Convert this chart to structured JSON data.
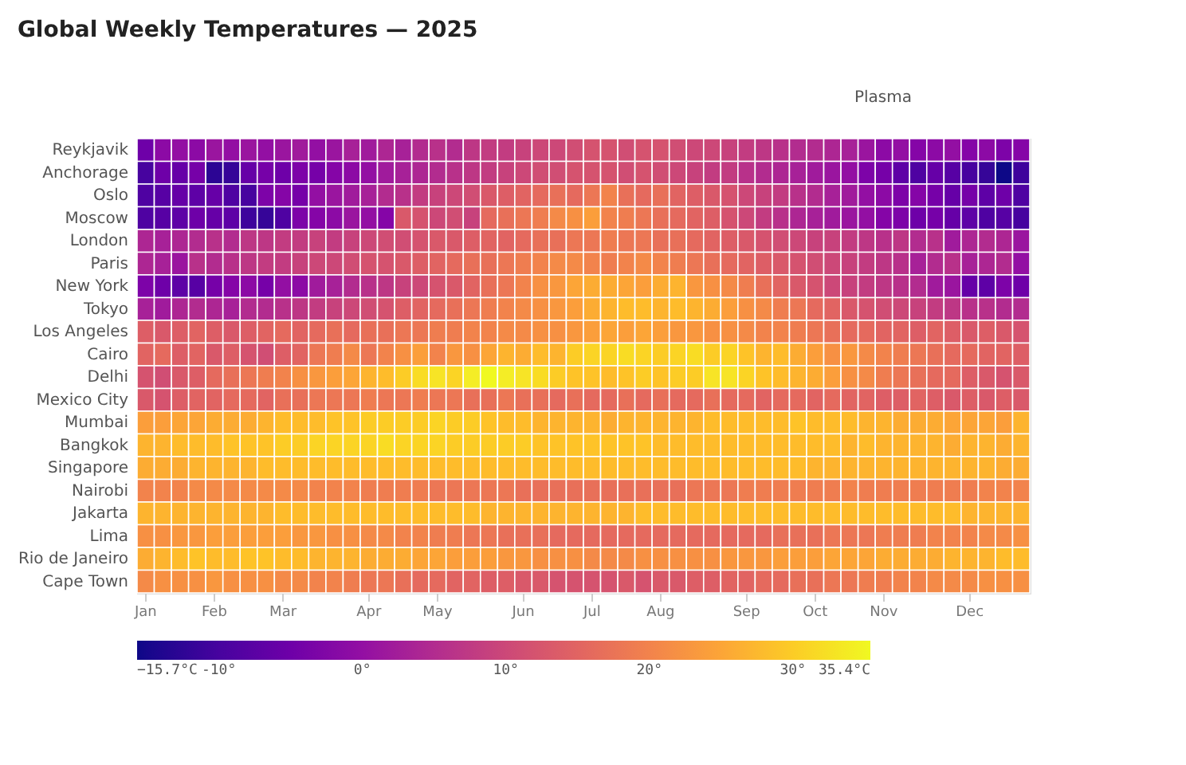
{
  "chart_data": {
    "type": "heatmap",
    "title": "Global Weekly Temperatures — 2025",
    "annotations": [
      "Plasma"
    ],
    "categories": [
      "Jan",
      null,
      null,
      null,
      "Feb",
      null,
      null,
      null,
      "Mar",
      null,
      null,
      null,
      null,
      "Apr",
      null,
      null,
      null,
      "May",
      null,
      null,
      null,
      null,
      "Jun",
      null,
      null,
      null,
      "Jul",
      null,
      null,
      null,
      "Aug",
      null,
      null,
      null,
      null,
      "Sep",
      null,
      null,
      null,
      "Oct",
      null,
      null,
      null,
      "Nov",
      null,
      null,
      null,
      null,
      "Dec",
      null,
      null,
      null
    ],
    "y_categories": [
      "Reykjavik",
      "Anchorage",
      "Oslo",
      "Moscow",
      "London",
      "Paris",
      "New York",
      "Tokyo",
      "Los Angeles",
      "Cairo",
      "Delhi",
      "Mexico City",
      "Mumbai",
      "Bangkok",
      "Singapore",
      "Nairobi",
      "Jakarta",
      "Lima",
      "Rio de Janeiro",
      "Cape Town"
    ],
    "cells": [
      [
        -5,
        -1,
        0,
        -1,
        1,
        0,
        1,
        0,
        1,
        2,
        0,
        1,
        3,
        2,
        4,
        3,
        5,
        6,
        5,
        7,
        8,
        8,
        9,
        10,
        10,
        11,
        12,
        12,
        11,
        12,
        12,
        11,
        10,
        10,
        9,
        8,
        7,
        6,
        5,
        5,
        4,
        3,
        1,
        -1,
        0,
        -2,
        -1,
        0,
        -2,
        -1,
        -3,
        -2
      ],
      [
        -10,
        -5,
        -6,
        -4,
        -13,
        -12,
        -6,
        -4,
        -5,
        -3,
        -4,
        -2,
        -1,
        0,
        2,
        3,
        4,
        5,
        6,
        7,
        8,
        9,
        10,
        11,
        11,
        12,
        12,
        12,
        11,
        12,
        11,
        10,
        9,
        8,
        8,
        6,
        5,
        4,
        3,
        2,
        1,
        0,
        -3,
        -4,
        -7,
        -9,
        -6,
        -8,
        -10,
        -12,
        -15.7,
        -11
      ],
      [
        -9,
        -8,
        -6,
        -7,
        -6,
        -9,
        -10,
        -3,
        -2,
        -4,
        0,
        1,
        2,
        3,
        5,
        6,
        8,
        9,
        10,
        11,
        13,
        14,
        15,
        16,
        17,
        16,
        18,
        20,
        17,
        16,
        17,
        15,
        14,
        13,
        12,
        10,
        9,
        8,
        6,
        5,
        3,
        2,
        0,
        -1,
        -3,
        -2,
        -4,
        -6,
        -4,
        -7,
        -5,
        -9
      ],
      [
        -9,
        -8,
        -7,
        -5,
        -6,
        -7,
        -11,
        -12,
        -9,
        -3,
        -2,
        -1,
        1,
        0,
        -2,
        13,
        12,
        10,
        11,
        9,
        16,
        17,
        18,
        19,
        21,
        22,
        24,
        20,
        19,
        18,
        17,
        16,
        15,
        14,
        12,
        10,
        8,
        6,
        4,
        3,
        2,
        1,
        0,
        -2,
        -3,
        -5,
        -4,
        -6,
        -7,
        -9,
        -8,
        -10
      ],
      [
        4,
        3,
        4,
        5,
        6,
        5,
        7,
        7,
        8,
        8,
        9,
        8,
        9,
        10,
        11,
        11,
        12,
        13,
        13,
        14,
        15,
        15,
        16,
        17,
        17,
        18,
        18,
        19,
        18,
        18,
        17,
        17,
        16,
        15,
        14,
        13,
        12,
        11,
        10,
        9,
        9,
        8,
        7,
        6,
        7,
        5,
        6,
        2,
        4,
        5,
        4,
        1
      ],
      [
        4,
        3,
        1,
        6,
        5,
        6,
        7,
        8,
        8,
        9,
        10,
        10,
        11,
        12,
        12,
        13,
        14,
        15,
        16,
        17,
        17,
        18,
        19,
        20,
        21,
        21,
        20,
        19,
        20,
        21,
        20,
        19,
        18,
        17,
        16,
        15,
        14,
        13,
        12,
        11,
        10,
        9,
        8,
        7,
        6,
        3,
        5,
        6,
        3,
        4,
        5,
        0
      ],
      [
        -3,
        -5,
        -7,
        -8,
        -4,
        -2,
        -1,
        -4,
        0,
        -1,
        2,
        3,
        5,
        6,
        7,
        9,
        10,
        12,
        13,
        15,
        17,
        18,
        20,
        22,
        23,
        25,
        26,
        26,
        25,
        24,
        26,
        27,
        23,
        22,
        21,
        19,
        17,
        15,
        13,
        12,
        10,
        9,
        8,
        7,
        6,
        5,
        2,
        1,
        -6,
        -7,
        -3,
        -5
      ],
      [
        3,
        2,
        4,
        5,
        4,
        3,
        5,
        5,
        6,
        7,
        8,
        9,
        10,
        11,
        12,
        14,
        15,
        16,
        17,
        18,
        19,
        20,
        21,
        22,
        23,
        24,
        26,
        27,
        28,
        28,
        27,
        28,
        27,
        26,
        24,
        22,
        21,
        19,
        18,
        16,
        15,
        13,
        12,
        11,
        10,
        9,
        8,
        7,
        6,
        6,
        5,
        5
      ],
      [
        14,
        13,
        14,
        15,
        14,
        13,
        14,
        15,
        16,
        15,
        16,
        17,
        16,
        17,
        17,
        18,
        18,
        19,
        19,
        20,
        20,
        21,
        21,
        22,
        22,
        23,
        24,
        25,
        24,
        25,
        24,
        23,
        23,
        22,
        22,
        21,
        20,
        20,
        19,
        18,
        17,
        16,
        16,
        15,
        15,
        14,
        15,
        14,
        13,
        14,
        13,
        12
      ],
      [
        15,
        16,
        14,
        15,
        13,
        14,
        12,
        11,
        14,
        15,
        18,
        19,
        21,
        18,
        20,
        22,
        24,
        20,
        23,
        22,
        25,
        27,
        26,
        28,
        27,
        30,
        31,
        31,
        32,
        31,
        30,
        31,
        32,
        30,
        31,
        29,
        27,
        28,
        26,
        24,
        22,
        23,
        21,
        20,
        19,
        18,
        17,
        16,
        16,
        15,
        15,
        14
      ],
      [
        12,
        11,
        13,
        14,
        16,
        17,
        18,
        19,
        20,
        22,
        23,
        24,
        25,
        27,
        28,
        30,
        32,
        33,
        31,
        34,
        35.4,
        34,
        33,
        32,
        30,
        29,
        29,
        28,
        29,
        30,
        29,
        30,
        30,
        33,
        33,
        31,
        29,
        28,
        27,
        26,
        24,
        22,
        21,
        19,
        18,
        17,
        16,
        16,
        14,
        13,
        12,
        13
      ],
      [
        13,
        12,
        14,
        15,
        15,
        16,
        16,
        15,
        17,
        17,
        18,
        18,
        18,
        19,
        18,
        18,
        19,
        18,
        18,
        17,
        17,
        18,
        17,
        17,
        16,
        17,
        16,
        16,
        17,
        16,
        17,
        16,
        16,
        17,
        16,
        16,
        15,
        16,
        16,
        15,
        16,
        15,
        15,
        14,
        14,
        15,
        14,
        13,
        14,
        13,
        14,
        13
      ],
      [
        24,
        24,
        25,
        25,
        26,
        26,
        26,
        27,
        28,
        28,
        28,
        29,
        29,
        30,
        30,
        30,
        30,
        31,
        30,
        30,
        29,
        28,
        28,
        27,
        27,
        27,
        27,
        26,
        27,
        27,
        27,
        27,
        27,
        28,
        28,
        28,
        28,
        28,
        29,
        28,
        28,
        28,
        27,
        27,
        26,
        26,
        26,
        25,
        25,
        25,
        24,
        27
      ],
      [
        27,
        27,
        28,
        28,
        28,
        29,
        29,
        29,
        30,
        30,
        31,
        31,
        31,
        31,
        32,
        31,
        31,
        31,
        30,
        30,
        30,
        30,
        30,
        29,
        29,
        29,
        29,
        29,
        29,
        29,
        28,
        28,
        28,
        28,
        28,
        28,
        28,
        28,
        28,
        28,
        28,
        27,
        28,
        27,
        27,
        27,
        27,
        26,
        27,
        27,
        26,
        27
      ],
      [
        26,
        26,
        26,
        27,
        27,
        27,
        27,
        28,
        28,
        28,
        28,
        28,
        28,
        28,
        28,
        28,
        28,
        28,
        28,
        28,
        28,
        28,
        28,
        28,
        28,
        28,
        28,
        28,
        28,
        28,
        28,
        28,
        28,
        28,
        28,
        28,
        28,
        28,
        28,
        27,
        27,
        27,
        27,
        27,
        27,
        27,
        27,
        27,
        27,
        27,
        26,
        26
      ],
      [
        20,
        20,
        20,
        21,
        21,
        21,
        21,
        21,
        21,
        21,
        20,
        20,
        20,
        19,
        19,
        19,
        19,
        18,
        18,
        18,
        18,
        18,
        17,
        17,
        17,
        17,
        17,
        17,
        17,
        17,
        17,
        17,
        18,
        18,
        18,
        19,
        19,
        19,
        19,
        19,
        19,
        20,
        19,
        19,
        19,
        19,
        19,
        19,
        19,
        20,
        20,
        20
      ],
      [
        27,
        27,
        27,
        27,
        27,
        27,
        27,
        27,
        28,
        28,
        28,
        28,
        28,
        28,
        28,
        28,
        28,
        28,
        28,
        28,
        27,
        27,
        27,
        27,
        27,
        27,
        27,
        27,
        27,
        28,
        28,
        28,
        28,
        28,
        28,
        28,
        28,
        28,
        28,
        28,
        28,
        28,
        28,
        28,
        28,
        28,
        28,
        28,
        27,
        27,
        27,
        27
      ],
      [
        22,
        22,
        23,
        23,
        24,
        24,
        24,
        24,
        24,
        23,
        23,
        22,
        22,
        21,
        21,
        20,
        20,
        19,
        19,
        18,
        18,
        17,
        17,
        17,
        16,
        16,
        16,
        16,
        16,
        16,
        16,
        16,
        16,
        16,
        16,
        16,
        16,
        17,
        17,
        17,
        18,
        18,
        18,
        19,
        19,
        19,
        20,
        20,
        20,
        21,
        21,
        22
      ],
      [
        26,
        27,
        28,
        29,
        28,
        28,
        29,
        29,
        28,
        28,
        27,
        27,
        27,
        26,
        26,
        26,
        25,
        25,
        24,
        24,
        24,
        23,
        23,
        22,
        22,
        22,
        21,
        21,
        21,
        22,
        22,
        22,
        22,
        22,
        23,
        23,
        23,
        24,
        24,
        24,
        25,
        25,
        25,
        26,
        26,
        26,
        26,
        27,
        27,
        27,
        28,
        28
      ],
      [
        21,
        22,
        22,
        22,
        23,
        22,
        22,
        22,
        21,
        21,
        20,
        20,
        19,
        18,
        18,
        17,
        16,
        16,
        15,
        15,
        14,
        14,
        13,
        13,
        12,
        12,
        12,
        12,
        13,
        12,
        13,
        13,
        14,
        14,
        15,
        15,
        16,
        16,
        17,
        17,
        18,
        18,
        19,
        19,
        20,
        20,
        21,
        21,
        21,
        22,
        22,
        22
      ]
    ],
    "clim": [
      -15.7,
      35.4
    ],
    "cticks": [
      {
        "value": -15.7,
        "label": "−15.7°C"
      },
      {
        "value": -10,
        "label": "-10°"
      },
      {
        "value": 0,
        "label": "0°"
      },
      {
        "value": 10,
        "label": "10°"
      },
      {
        "value": 20,
        "label": "20°"
      },
      {
        "value": 30,
        "label": "30°"
      },
      {
        "value": 35.4,
        "label": "35.4°C"
      }
    ]
  }
}
